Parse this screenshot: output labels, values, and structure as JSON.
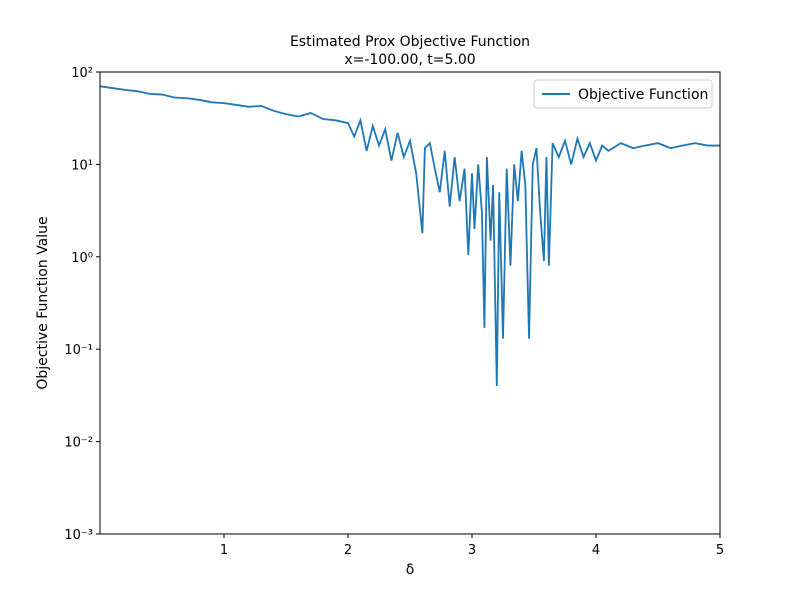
{
  "chart_data": {
    "type": "line",
    "title": "Estimated Prox Objective Function",
    "subtitle": "x=-100.00, t=5.00",
    "x_label": "δ",
    "y_label": "Objective Function Value",
    "yscale": "log",
    "grid": false,
    "legend": "upper right",
    "xlim": [
      0,
      5
    ],
    "xticks": [
      1,
      2,
      3,
      4,
      5
    ],
    "ylim": [
      0.001,
      100
    ],
    "yticks": [
      {
        "value": 0.001,
        "label": "10⁻³"
      },
      {
        "value": 0.01,
        "label": "10⁻²"
      },
      {
        "value": 0.1,
        "label": "10⁻¹"
      },
      {
        "value": 1,
        "label": "10⁰"
      },
      {
        "value": 10,
        "label": "10¹"
      },
      {
        "value": 100,
        "label": "10²"
      }
    ],
    "x": [
      0,
      0.1,
      0.2,
      0.3,
      0.4,
      0.5,
      0.6,
      0.7,
      0.8,
      0.9,
      1.0,
      1.1,
      1.2,
      1.3,
      1.4,
      1.5,
      1.6,
      1.7,
      1.8,
      1.9,
      2.0,
      2.05,
      2.1,
      2.15,
      2.2,
      2.25,
      2.3,
      2.35,
      2.4,
      2.45,
      2.5,
      2.55,
      2.6,
      2.62,
      2.66,
      2.7,
      2.74,
      2.78,
      2.82,
      2.86,
      2.9,
      2.94,
      2.97,
      3.0,
      3.02,
      3.05,
      3.08,
      3.1,
      3.12,
      3.15,
      3.17,
      3.2,
      3.22,
      3.25,
      3.28,
      3.31,
      3.34,
      3.37,
      3.4,
      3.43,
      3.46,
      3.49,
      3.52,
      3.55,
      3.58,
      3.6,
      3.62,
      3.65,
      3.7,
      3.75,
      3.8,
      3.85,
      3.9,
      3.95,
      4.0,
      4.05,
      4.1,
      4.2,
      4.3,
      4.4,
      4.5,
      4.6,
      4.7,
      4.8,
      4.9,
      5.0
    ],
    "series": [
      {
        "name": "Objective Function",
        "color": "#1f77b4",
        "values": [
          70,
          67,
          64,
          62,
          58,
          57,
          53,
          52,
          50,
          47,
          46,
          44,
          42,
          43,
          38,
          35,
          33,
          36,
          31,
          30,
          28,
          20,
          30,
          14,
          26,
          16,
          24,
          11,
          22,
          12,
          18,
          8,
          1.8,
          15,
          17,
          9,
          5,
          14,
          3.5,
          12,
          4,
          9,
          1.05,
          8,
          2,
          10,
          3,
          0.17,
          12,
          1.5,
          6,
          0.04,
          5,
          0.13,
          9,
          0.8,
          10,
          4,
          14,
          6,
          0.13,
          10,
          15,
          3,
          0.9,
          12,
          0.8,
          17,
          12,
          18,
          10,
          19,
          12,
          17,
          11,
          16,
          14,
          17,
          15,
          16,
          17,
          15,
          16,
          17,
          16,
          16
        ]
      }
    ]
  }
}
